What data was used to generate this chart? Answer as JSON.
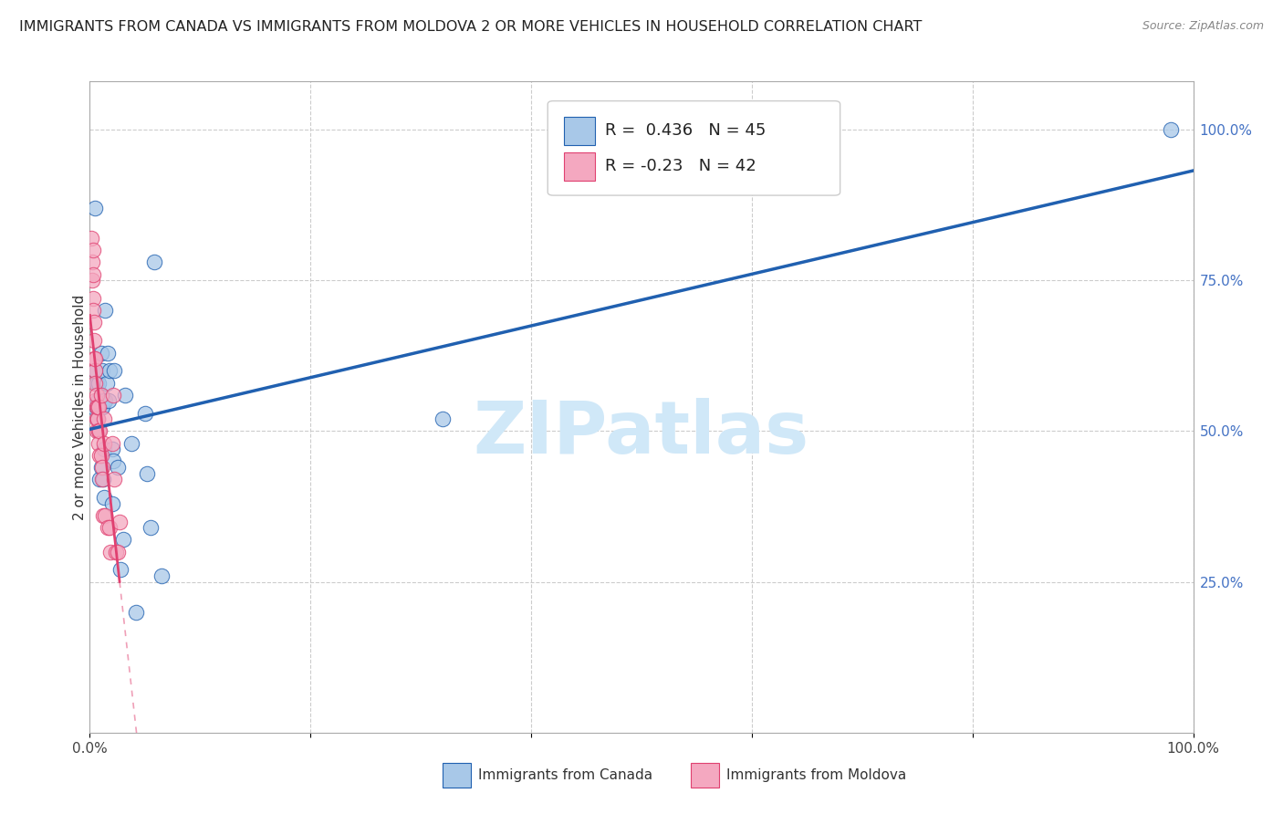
{
  "title": "IMMIGRANTS FROM CANADA VS IMMIGRANTS FROM MOLDOVA 2 OR MORE VEHICLES IN HOUSEHOLD CORRELATION CHART",
  "source": "Source: ZipAtlas.com",
  "ylabel": "2 or more Vehicles in Household",
  "ylabel_right_ticks": [
    "100.0%",
    "75.0%",
    "50.0%",
    "25.0%"
  ],
  "ylabel_right_vals": [
    1.0,
    0.75,
    0.5,
    0.25
  ],
  "canada_R": 0.436,
  "canada_N": 45,
  "moldova_R": -0.23,
  "moldova_N": 42,
  "canada_color": "#a8c8e8",
  "moldova_color": "#f4a8c0",
  "canada_line_color": "#2060b0",
  "moldova_line_color": "#e04070",
  "watermark_color": "#d0e8f8",
  "xlim": [
    0.0,
    1.0
  ],
  "ylim": [
    0.0,
    1.08
  ],
  "canada_x": [
    0.003,
    0.005,
    0.005,
    0.006,
    0.006,
    0.007,
    0.007,
    0.008,
    0.008,
    0.008,
    0.009,
    0.009,
    0.01,
    0.01,
    0.01,
    0.01,
    0.011,
    0.011,
    0.012,
    0.012,
    0.013,
    0.013,
    0.014,
    0.014,
    0.015,
    0.016,
    0.017,
    0.018,
    0.02,
    0.02,
    0.021,
    0.022,
    0.025,
    0.028,
    0.03,
    0.032,
    0.038,
    0.042,
    0.05,
    0.052,
    0.055,
    0.058,
    0.065,
    0.32,
    0.98
  ],
  "canada_y": [
    0.54,
    0.87,
    0.6,
    0.54,
    0.58,
    0.52,
    0.55,
    0.54,
    0.58,
    0.5,
    0.54,
    0.42,
    0.44,
    0.54,
    0.56,
    0.63,
    0.54,
    0.6,
    0.42,
    0.55,
    0.39,
    0.47,
    0.7,
    0.55,
    0.58,
    0.63,
    0.55,
    0.6,
    0.47,
    0.38,
    0.45,
    0.6,
    0.44,
    0.27,
    0.32,
    0.56,
    0.48,
    0.2,
    0.53,
    0.43,
    0.34,
    0.78,
    0.26,
    0.52,
    1.0
  ],
  "moldova_x": [
    0.001,
    0.002,
    0.002,
    0.003,
    0.003,
    0.003,
    0.003,
    0.004,
    0.004,
    0.004,
    0.005,
    0.005,
    0.005,
    0.005,
    0.006,
    0.006,
    0.006,
    0.006,
    0.007,
    0.007,
    0.008,
    0.008,
    0.008,
    0.009,
    0.009,
    0.01,
    0.01,
    0.011,
    0.011,
    0.012,
    0.013,
    0.013,
    0.014,
    0.016,
    0.018,
    0.019,
    0.02,
    0.021,
    0.022,
    0.024,
    0.025,
    0.027
  ],
  "moldova_y": [
    0.82,
    0.78,
    0.75,
    0.8,
    0.76,
    0.72,
    0.7,
    0.68,
    0.65,
    0.62,
    0.6,
    0.58,
    0.55,
    0.62,
    0.56,
    0.54,
    0.52,
    0.5,
    0.52,
    0.54,
    0.54,
    0.5,
    0.48,
    0.5,
    0.46,
    0.56,
    0.46,
    0.44,
    0.42,
    0.36,
    0.52,
    0.48,
    0.36,
    0.34,
    0.34,
    0.3,
    0.48,
    0.56,
    0.42,
    0.3,
    0.3,
    0.35
  ]
}
